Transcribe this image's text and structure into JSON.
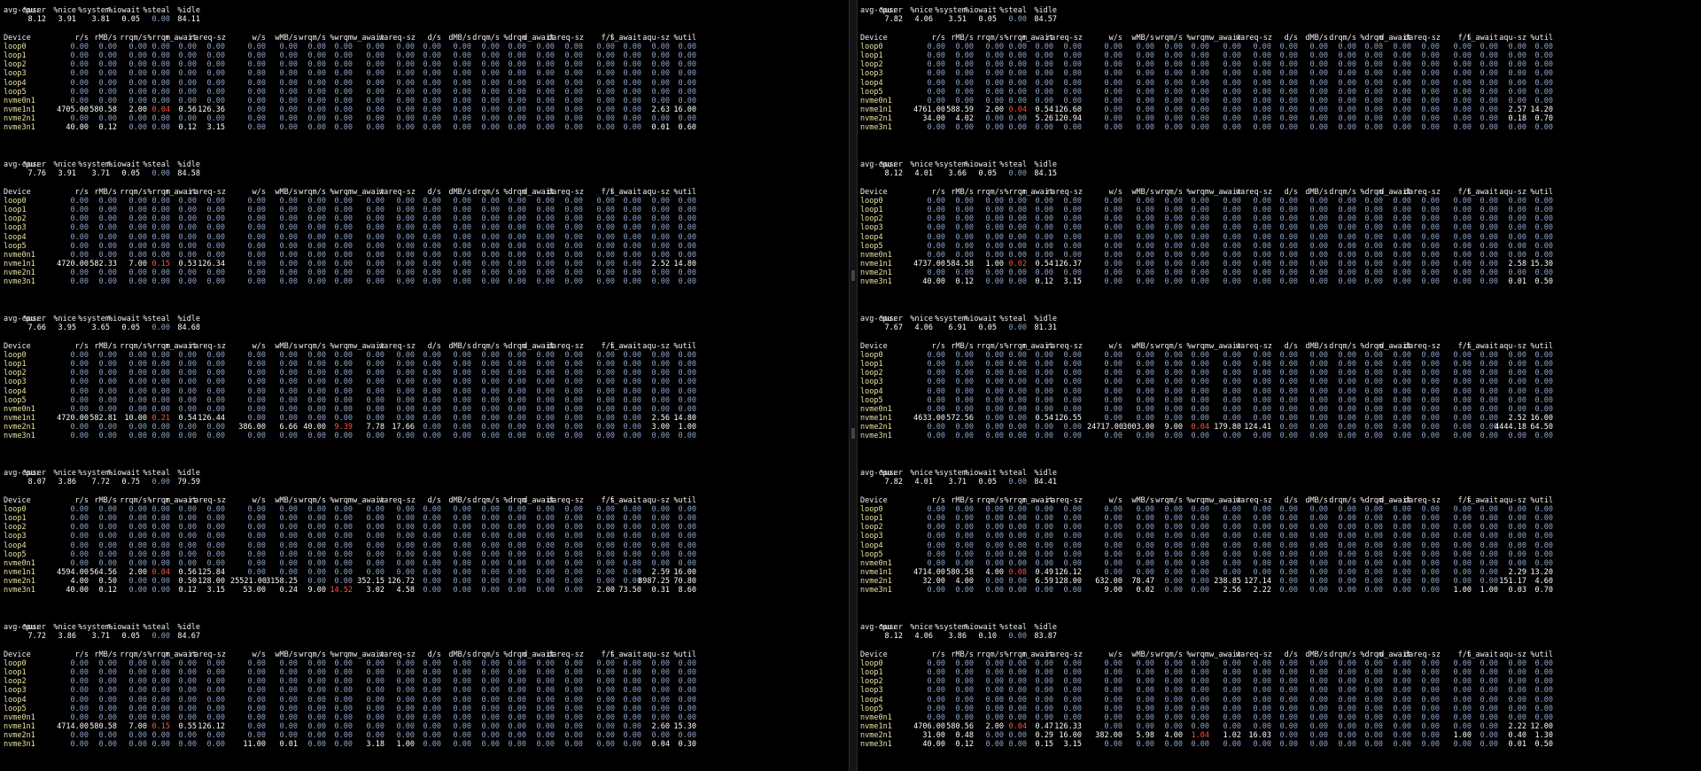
{
  "colors": {
    "background": "#000000",
    "header": "#f0f0f0",
    "device": "#e8e4a0",
    "zero": "#8ca3c9",
    "value": "#ffffff",
    "alert": "#ff5540"
  },
  "cpu_header": [
    "avg-cpu:",
    "%user",
    "%nice",
    "%system",
    "%iowait",
    "%steal",
    "%idle"
  ],
  "dev_header": [
    "Device",
    "r/s",
    "rMB/s",
    "rrqm/s",
    "%rrqm",
    "r_await",
    "rareq-sz",
    "w/s",
    "wMB/s",
    "wrqm/s",
    "%wrqm",
    "w_await",
    "wareq-sz",
    "d/s",
    "dMB/s",
    "drqm/s",
    "%drqm",
    "d_await",
    "dareq-sz",
    "f/s",
    "f_await",
    "aqu-sz",
    "%util"
  ],
  "left": [
    {
      "cpu": [
        "8.12",
        "3.91",
        "3.81",
        "0.05",
        "0.00",
        "84.11"
      ],
      "rows": {
        "nvme1n1": [
          "4705.00",
          "580.58",
          "2.00",
          "0.04",
          "0.56",
          "126.36",
          "0.00",
          "0.00",
          "0.00",
          "0.00",
          "0.00",
          "0.00",
          "0.00",
          "0.00",
          "0.00",
          "0.00",
          "0.00",
          "0.00",
          "0.00",
          "0.00",
          "2.63",
          "16.00"
        ],
        "nvme3n1": [
          "40.00",
          "0.12",
          "0.00",
          "0.00",
          "0.12",
          "3.15",
          "0.00",
          "0.00",
          "0.00",
          "0.00",
          "0.00",
          "0.00",
          "0.00",
          "0.00",
          "0.00",
          "0.00",
          "0.00",
          "0.00",
          "0.00",
          "0.00",
          "0.01",
          "0.60"
        ]
      }
    },
    {
      "cpu": [
        "7.76",
        "3.91",
        "3.71",
        "0.05",
        "0.00",
        "84.58"
      ],
      "rows": {
        "nvme1n1": [
          "4720.00",
          "582.33",
          "7.00",
          "0.15",
          "0.53",
          "126.34",
          "0.00",
          "0.00",
          "0.00",
          "0.00",
          "0.00",
          "0.00",
          "0.00",
          "0.00",
          "0.00",
          "0.00",
          "0.00",
          "0.00",
          "0.00",
          "0.00",
          "2.52",
          "14.80"
        ]
      }
    },
    {
      "cpu": [
        "7.66",
        "3.95",
        "3.65",
        "0.05",
        "0.00",
        "84.68"
      ],
      "rows": {
        "nvme1n1": [
          "4720.00",
          "582.81",
          "10.00",
          "0.21",
          "0.54",
          "126.44",
          "0.00",
          "0.00",
          "0.00",
          "0.00",
          "0.00",
          "0.00",
          "0.00",
          "0.00",
          "0.00",
          "0.00",
          "0.00",
          "0.00",
          "0.00",
          "0.00",
          "2.56",
          "14.80"
        ],
        "nvme2n1": [
          "0.00",
          "0.00",
          "0.00",
          "0.00",
          "0.00",
          "0.00",
          "386.00",
          "6.66",
          "40.00",
          "9.39",
          "7.78",
          "17.66",
          "0.00",
          "0.00",
          "0.00",
          "0.00",
          "0.00",
          "0.00",
          "0.00",
          "0.00",
          "3.00",
          "1.00"
        ]
      }
    },
    {
      "cpu": [
        "8.07",
        "3.86",
        "7.72",
        "0.75",
        "0.00",
        "79.59"
      ],
      "rows": {
        "nvme1n1": [
          "4594.00",
          "564.56",
          "2.00",
          "0.04",
          "0.56",
          "125.84",
          "0.00",
          "0.00",
          "0.00",
          "0.00",
          "0.00",
          "0.00",
          "0.00",
          "0.00",
          "0.00",
          "0.00",
          "0.00",
          "0.00",
          "0.00",
          "0.00",
          "2.59",
          "16.00"
        ],
        "nvme2n1": [
          "4.00",
          "0.50",
          "0.00",
          "0.00",
          "0.50",
          "128.00",
          "25521.00",
          "3158.25",
          "0.00",
          "0.00",
          "352.15",
          "126.72",
          "0.00",
          "0.00",
          "0.00",
          "0.00",
          "0.00",
          "0.00",
          "0.00",
          "0.00",
          "8987.25",
          "70.80"
        ],
        "nvme3n1": [
          "40.00",
          "0.12",
          "0.00",
          "0.00",
          "0.12",
          "3.15",
          "53.00",
          "0.24",
          "9.00",
          "14.52",
          "3.02",
          "4.58",
          "0.00",
          "0.00",
          "0.00",
          "0.00",
          "0.00",
          "0.00",
          "2.00",
          "73.50",
          "0.31",
          "8.60"
        ]
      }
    },
    {
      "cpu": [
        "7.72",
        "3.86",
        "3.71",
        "0.05",
        "0.00",
        "84.67"
      ],
      "rows": {
        "nvme1n1": [
          "4714.00",
          "580.58",
          "7.00",
          "0.15",
          "0.55",
          "126.12",
          "0.00",
          "0.00",
          "0.00",
          "0.00",
          "0.00",
          "0.00",
          "0.00",
          "0.00",
          "0.00",
          "0.00",
          "0.00",
          "0.00",
          "0.00",
          "0.00",
          "2.60",
          "15.30"
        ],
        "nvme3n1": [
          "0.00",
          "0.00",
          "0.00",
          "0.00",
          "0.00",
          "0.00",
          "11.00",
          "0.01",
          "0.00",
          "0.00",
          "3.18",
          "1.00",
          "0.00",
          "0.00",
          "0.00",
          "0.00",
          "0.00",
          "0.00",
          "0.00",
          "0.00",
          "0.04",
          "0.30"
        ]
      }
    }
  ],
  "right": [
    {
      "cpu": [
        "7.82",
        "4.06",
        "3.51",
        "0.05",
        "0.00",
        "84.57"
      ],
      "rows": {
        "nvme1n1": [
          "4761.00",
          "588.59",
          "2.00",
          "0.04",
          "0.54",
          "126.60",
          "0.00",
          "0.00",
          "0.00",
          "0.00",
          "0.00",
          "0.00",
          "0.00",
          "0.00",
          "0.00",
          "0.00",
          "0.00",
          "0.00",
          "0.00",
          "0.00",
          "2.57",
          "14.20"
        ],
        "nvme2n1": [
          "34.00",
          "4.02",
          "0.00",
          "0.00",
          "5.26",
          "120.94",
          "0.00",
          "0.00",
          "0.00",
          "0.00",
          "0.00",
          "0.00",
          "0.00",
          "0.00",
          "0.00",
          "0.00",
          "0.00",
          "0.00",
          "0.00",
          "0.00",
          "0.18",
          "0.70"
        ]
      }
    },
    {
      "cpu": [
        "8.12",
        "4.01",
        "3.66",
        "0.05",
        "0.00",
        "84.15"
      ],
      "rows": {
        "nvme1n1": [
          "4737.00",
          "584.58",
          "1.00",
          "0.02",
          "0.54",
          "126.37",
          "0.00",
          "0.00",
          "0.00",
          "0.00",
          "0.00",
          "0.00",
          "0.00",
          "0.00",
          "0.00",
          "0.00",
          "0.00",
          "0.00",
          "0.00",
          "0.00",
          "2.58",
          "15.30"
        ],
        "nvme3n1": [
          "40.00",
          "0.12",
          "0.00",
          "0.00",
          "0.12",
          "3.15",
          "0.00",
          "0.00",
          "0.00",
          "0.00",
          "0.00",
          "0.00",
          "0.00",
          "0.00",
          "0.00",
          "0.00",
          "0.00",
          "0.00",
          "0.00",
          "0.00",
          "0.01",
          "0.50"
        ]
      }
    },
    {
      "cpu": [
        "7.67",
        "4.06",
        "6.91",
        "0.05",
        "0.00",
        "81.31"
      ],
      "rows": {
        "nvme1n1": [
          "4633.00",
          "572.56",
          "0.00",
          "0.00",
          "0.54",
          "126.55",
          "0.00",
          "0.00",
          "0.00",
          "0.00",
          "0.00",
          "0.00",
          "0.00",
          "0.00",
          "0.00",
          "0.00",
          "0.00",
          "0.00",
          "0.00",
          "0.00",
          "2.52",
          "16.00"
        ],
        "nvme2n1": [
          "0.00",
          "0.00",
          "0.00",
          "0.00",
          "0.00",
          "0.00",
          "24717.00",
          "3003.00",
          "9.00",
          "0.04",
          "179.80",
          "124.41",
          "0.00",
          "0.00",
          "0.00",
          "0.00",
          "0.00",
          "0.00",
          "0.00",
          "0.00",
          "4444.18",
          "64.50"
        ]
      }
    },
    {
      "cpu": [
        "7.82",
        "4.01",
        "3.71",
        "0.05",
        "0.00",
        "84.41"
      ],
      "rows": {
        "nvme1n1": [
          "4714.00",
          "580.58",
          "4.00",
          "0.08",
          "0.49",
          "126.12",
          "0.00",
          "0.00",
          "0.00",
          "0.00",
          "0.00",
          "0.00",
          "0.00",
          "0.00",
          "0.00",
          "0.00",
          "0.00",
          "0.00",
          "0.00",
          "0.00",
          "2.29",
          "13.20"
        ],
        "nvme2n1": [
          "32.00",
          "4.00",
          "0.00",
          "0.00",
          "6.59",
          "128.00",
          "632.00",
          "78.47",
          "0.00",
          "0.00",
          "238.85",
          "127.14",
          "0.00",
          "0.00",
          "0.00",
          "0.00",
          "0.00",
          "0.00",
          "0.00",
          "0.00",
          "151.17",
          "4.60"
        ],
        "nvme3n1": [
          "0.00",
          "0.00",
          "0.00",
          "0.00",
          "0.00",
          "0.00",
          "9.00",
          "0.02",
          "0.00",
          "0.00",
          "2.56",
          "2.22",
          "0.00",
          "0.00",
          "0.00",
          "0.00",
          "0.00",
          "0.00",
          "1.00",
          "1.00",
          "0.03",
          "0.70"
        ]
      }
    },
    {
      "cpu": [
        "8.12",
        "4.06",
        "3.86",
        "0.10",
        "0.00",
        "83.87"
      ],
      "rows": {
        "nvme1n1": [
          "4706.00",
          "580.56",
          "2.00",
          "0.04",
          "0.47",
          "126.33",
          "0.00",
          "0.00",
          "0.00",
          "0.00",
          "0.00",
          "0.00",
          "0.00",
          "0.00",
          "0.00",
          "0.00",
          "0.00",
          "0.00",
          "0.00",
          "0.00",
          "2.22",
          "12.00"
        ],
        "nvme2n1": [
          "31.00",
          "0.48",
          "0.00",
          "0.00",
          "0.29",
          "16.00",
          "382.00",
          "5.98",
          "4.00",
          "1.04",
          "1.02",
          "16.03",
          "0.00",
          "0.00",
          "0.00",
          "0.00",
          "0.00",
          "0.00",
          "1.00",
          "0.00",
          "0.40",
          "1.30"
        ],
        "nvme3n1": [
          "40.00",
          "0.12",
          "0.00",
          "0.00",
          "0.15",
          "3.15",
          "0.00",
          "0.00",
          "0.00",
          "0.00",
          "0.00",
          "0.00",
          "0.00",
          "0.00",
          "0.00",
          "0.00",
          "0.00",
          "0.00",
          "0.00",
          "0.00",
          "0.01",
          "0.50"
        ]
      }
    }
  ],
  "devices": [
    "loop0",
    "loop1",
    "loop2",
    "loop3",
    "loop4",
    "loop5",
    "nvme0n1",
    "nvme1n1",
    "nvme2n1",
    "nvme3n1"
  ]
}
